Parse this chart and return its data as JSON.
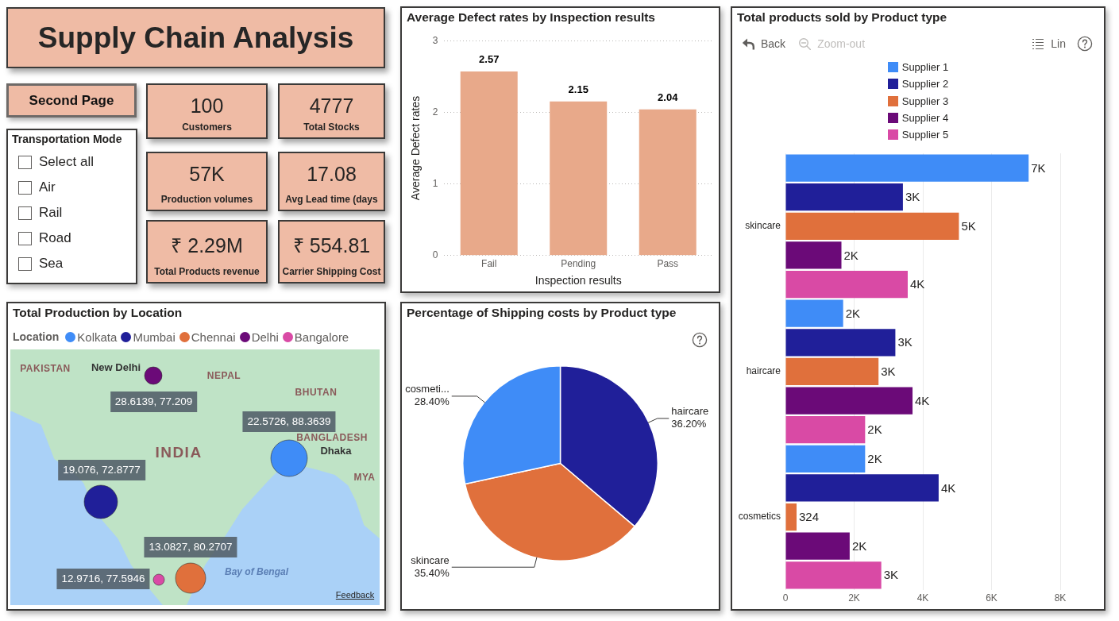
{
  "chart_data": [
    {
      "type": "other",
      "title": "Supply Chain Analysis",
      "annotations": [
        "Second Page"
      ]
    },
    {
      "type": "other",
      "title": "Transportation Mode",
      "categories": [
        "Select all",
        "Air",
        "Rail",
        "Road",
        "Sea"
      ]
    },
    {
      "type": "other",
      "annotations": [
        "100",
        "Customers",
        "4777",
        "Total Stocks",
        "57K",
        "Production volumes",
        "17.08",
        "Avg Lead time (days",
        "₹ 2.29M",
        "Total Products revenue",
        "₹ 554.81",
        "Carrier Shipping Cost"
      ]
    },
    {
      "type": "bar",
      "title": "Average Defect rates by Inspection results",
      "xlabel": "Inspection results",
      "ylabel": "Average Defect rates",
      "categories": [
        "Fail",
        "Pending",
        "Pass"
      ],
      "values": [
        2.57,
        2.15,
        2.04
      ],
      "color": "#e8a98a",
      "ylim": [
        0,
        3
      ],
      "yticks": [
        0,
        1,
        2,
        3
      ],
      "grid": "y",
      "data_labels": true
    },
    {
      "type": "bar",
      "orientation": "horizontal",
      "title": "Total products sold by Product type",
      "categories": [
        "skincare",
        "haircare",
        "cosmetics"
      ],
      "series": [
        {
          "name": "Supplier 1",
          "color": "#3f8cf7",
          "values": [
            7080,
            1680,
            2320
          ],
          "value_labels": [
            "7K",
            "2K",
            "2K"
          ]
        },
        {
          "name": "Supplier 2",
          "color": "#201f99",
          "values": [
            3420,
            3200,
            4460
          ],
          "value_labels": [
            "3K",
            "3K",
            "4K"
          ]
        },
        {
          "name": "Supplier 3",
          "color": "#e0703c",
          "values": [
            5050,
            2710,
            324
          ],
          "value_labels": [
            "5K",
            "3K",
            "324"
          ]
        },
        {
          "name": "Supplier 4",
          "color": "#6b0a78",
          "values": [
            1630,
            3700,
            1870
          ],
          "value_labels": [
            "2K",
            "4K",
            "2K"
          ]
        },
        {
          "name": "Supplier 5",
          "color": "#d94aa5",
          "values": [
            3560,
            2320,
            2790
          ],
          "value_labels": [
            "4K",
            "2K",
            "3K"
          ]
        }
      ],
      "xlim": [
        0,
        8000
      ],
      "xticks": [
        0,
        {
          "value": 2000,
          "label": "2K"
        },
        {
          "value": 4000,
          "label": "4K"
        },
        {
          "value": 6000,
          "label": "6K"
        },
        {
          "value": 8000,
          "label": "8K"
        }
      ],
      "grid": "x",
      "legend": "top",
      "annotations": [
        "Back",
        "Zoom-out",
        "Lin"
      ]
    },
    {
      "type": "other",
      "title": "Total Production by Location",
      "legend_title": "Location",
      "legend": "top left",
      "series": [
        {
          "name": "Kolkata",
          "color": "#3f8cf7"
        },
        {
          "name": "Mumbai",
          "color": "#201f99"
        },
        {
          "name": "Chennai",
          "color": "#e0703c"
        },
        {
          "name": "Delhi",
          "color": "#6b0a78"
        },
        {
          "name": "Bangalore",
          "color": "#d94aa5"
        }
      ],
      "annotations": [
        "22.5726, 88.3639",
        "19.076, 72.8777",
        "13.0827, 80.2707",
        "28.6139, 77.209",
        "12.9716, 77.5946",
        "PAKISTAN",
        "New Delhi",
        "NEPAL",
        "BHUTAN",
        "INDIA",
        "BANGLADESH",
        "Dhaka",
        "MYA",
        "Bay of Bengal",
        "Feedback"
      ]
    },
    {
      "type": "pie",
      "title": "Percentage of Shipping costs by Product type",
      "categories": [
        "haircare",
        "skincare",
        "cosmeti..."
      ],
      "values": [
        36.2,
        35.4,
        28.4
      ],
      "colors": [
        "#201f99",
        "#e0703c",
        "#3f8cf7"
      ],
      "value_labels": [
        "36.20%",
        "35.40%",
        "28.40%"
      ]
    }
  ]
}
